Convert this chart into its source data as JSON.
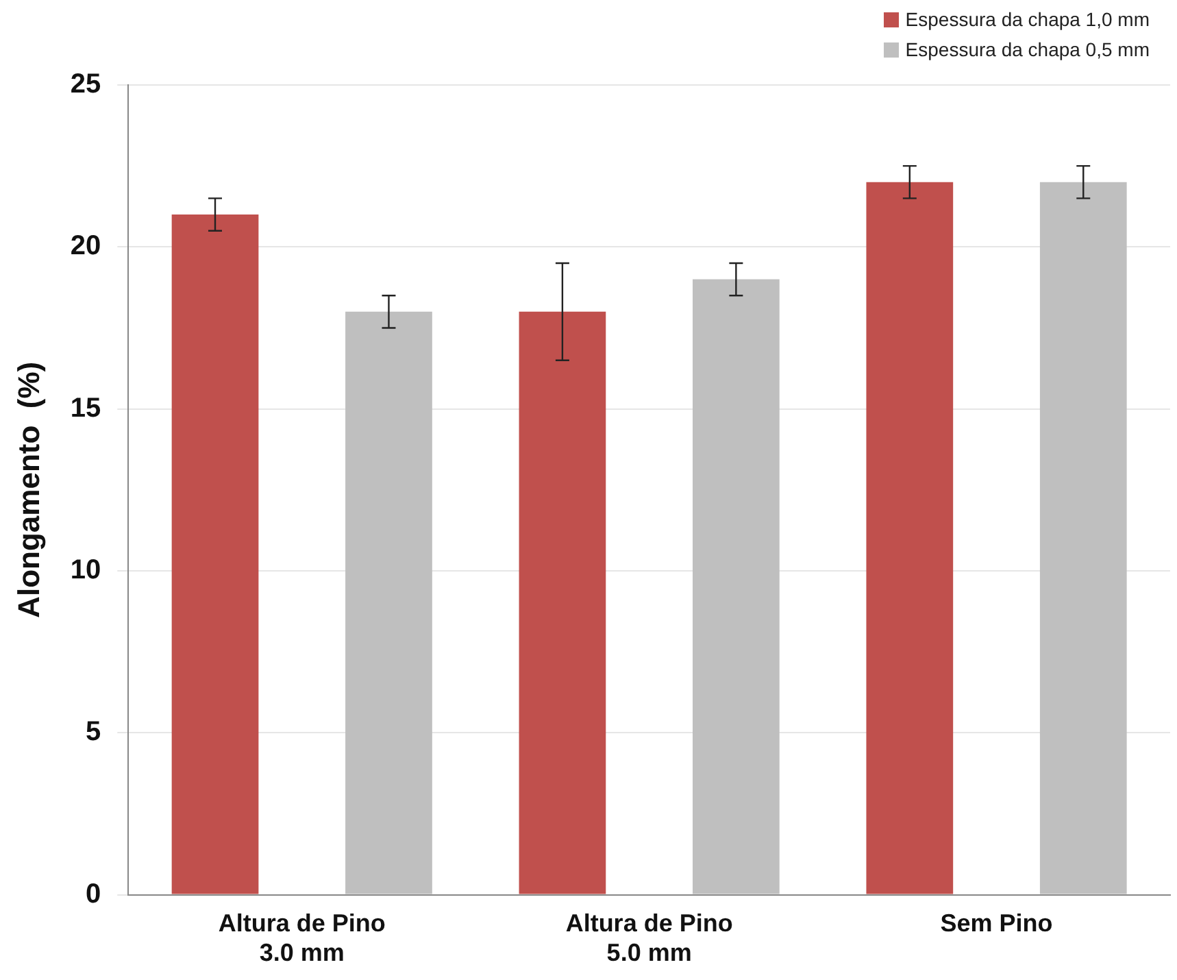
{
  "chart_data": {
    "type": "bar",
    "ylabel": "Alongamento  (%)",
    "categories": [
      "Altura de Pino\n3.0 mm",
      "Altura de Pino\n5.0 mm",
      "Sem Pino"
    ],
    "series": [
      {
        "name": "Espessura da chapa 1,0 mm",
        "color": "#c0504d",
        "values": [
          21,
          18,
          22
        ],
        "errors": [
          0.5,
          1.5,
          0.5
        ]
      },
      {
        "name": "Espessura da chapa 0,5 mm",
        "color": "#bfbfbf",
        "values": [
          18,
          19,
          22
        ],
        "errors": [
          0.5,
          0.5,
          0.5
        ]
      }
    ],
    "ylim": [
      0,
      25
    ],
    "yticks": [
      0,
      5,
      10,
      15,
      20,
      25
    ],
    "grid": "y",
    "legend": "top right"
  }
}
